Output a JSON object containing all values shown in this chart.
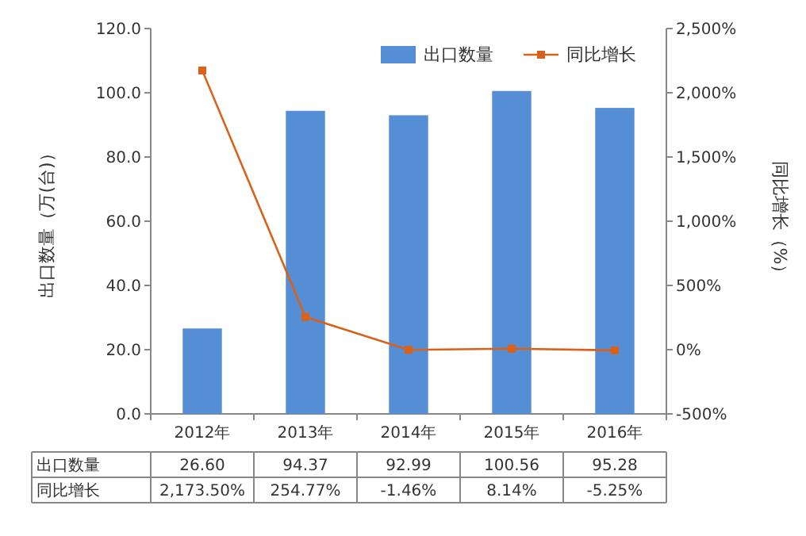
{
  "chart_data": {
    "type": "bar",
    "categories": [
      "2012年",
      "2013年",
      "2014年",
      "2015年",
      "2016年"
    ],
    "ylabel": "出口数量（万(台)）",
    "y2label": "同比增长（%）",
    "ylim": [
      0,
      120
    ],
    "yticks": [
      {
        "value": 0,
        "label": "0.0"
      },
      {
        "value": 20,
        "label": "20.0"
      },
      {
        "value": 40,
        "label": "40.0"
      },
      {
        "value": 60,
        "label": "60.0"
      },
      {
        "value": 80,
        "label": "80.0"
      },
      {
        "value": 100,
        "label": "100.0"
      },
      {
        "value": 120,
        "label": "120.0"
      }
    ],
    "y2lim": [
      -500,
      2500
    ],
    "y2ticks": [
      {
        "value": -500,
        "label": "-500%"
      },
      {
        "value": 0,
        "label": "0%"
      },
      {
        "value": 500,
        "label": "500%"
      },
      {
        "value": 1000,
        "label": "1,000%"
      },
      {
        "value": 1500,
        "label": "1,500%"
      },
      {
        "value": 2000,
        "label": "2,000%"
      },
      {
        "value": 2500,
        "label": "2,500%"
      }
    ],
    "legend": "top right",
    "marker": "square",
    "series": [
      {
        "name": "出口数量",
        "color": "#558ed5",
        "values": [
          26.6,
          94.37,
          92.99,
          100.56,
          95.28
        ],
        "value_labels": [
          "26.60",
          "94.37",
          "92.99",
          "100.56",
          "95.28"
        ]
      },
      {
        "name": "同比增长",
        "type": "line",
        "axis": "y2",
        "color": "#d9621a",
        "values": [
          2173.5,
          254.77,
          -1.46,
          8.14,
          -5.25
        ],
        "value_labels": [
          "2,173.50%",
          "254.77%",
          "-1.46%",
          "8.14%",
          "-5.25%"
        ]
      }
    ]
  }
}
